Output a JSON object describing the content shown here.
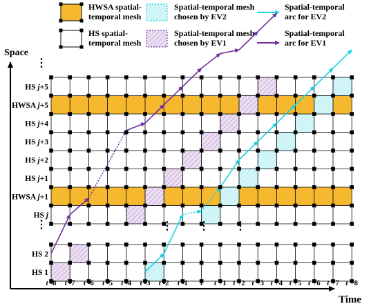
{
  "legend": {
    "hwsa_mesh": "HWSA spatial-\ntemporal mesh",
    "hs_mesh": "HS spatial-\ntemporal mesh",
    "ev2_mesh": "Spatial-temporal mesh\nchosen by EV2",
    "ev1_mesh": "Spatial-temporal mesh\nchosen by EV1",
    "ev2_arc": "Spatial-temporal\narc for EV2",
    "ev1_arc": "Spatial-temporal\narc for EV1"
  },
  "axes": {
    "y_label": "Space",
    "x_label": "Time"
  },
  "rows": [
    {
      "pre": "HS ",
      "var": "j",
      "post": "+5",
      "type": "HS"
    },
    {
      "pre": "HWSA ",
      "var": "j",
      "post": "+5",
      "type": "HWSA"
    },
    {
      "pre": "HS ",
      "var": "j",
      "post": "+4",
      "type": "HS"
    },
    {
      "pre": "HS ",
      "var": "j",
      "post": "+3",
      "type": "HS"
    },
    {
      "pre": "HS ",
      "var": "j",
      "post": "+2",
      "type": "HS"
    },
    {
      "pre": "HS ",
      "var": "j",
      "post": "+1",
      "type": "HS"
    },
    {
      "pre": "HWSA ",
      "var": "j",
      "post": "+1",
      "type": "HWSA"
    },
    {
      "pre": "HS ",
      "var": "j",
      "post": "",
      "type": "HS"
    }
  ],
  "bottom_rows": [
    {
      "pre": "HS 2",
      "var": "",
      "post": "",
      "type": "HS"
    },
    {
      "pre": "HS 1",
      "var": "",
      "post": "",
      "type": "HS"
    }
  ],
  "time_ticks": [
    {
      "var": "t",
      "post": " -8"
    },
    {
      "var": "t",
      "post": " -7"
    },
    {
      "var": "t",
      "post": " -6"
    },
    {
      "var": "t",
      "post": " -5"
    },
    {
      "var": "t",
      "post": " -4"
    },
    {
      "var": "t",
      "post": " -3"
    },
    {
      "var": "t",
      "post": " -2"
    },
    {
      "var": "t",
      "post": " -1"
    },
    {
      "var": "t",
      "post": ""
    },
    {
      "var": "t",
      "post": " +1"
    },
    {
      "var": "t",
      "post": " +2"
    },
    {
      "var": "t",
      "post": " +3"
    },
    {
      "var": "t",
      "post": " +4"
    },
    {
      "var": "t",
      "post": " +5"
    },
    {
      "var": "t",
      "post": " +6"
    },
    {
      "var": "t",
      "post": " +7"
    },
    {
      "var": "t",
      "post": " +8"
    }
  ],
  "ellipsis": "⋮",
  "colors": {
    "hwsa_fill": "#f5b82e",
    "ev1": "#7030a0",
    "ev1_fill": "#e6d4ee",
    "ev2": "#19d3e0",
    "ev2_fill": "#cdf4f6",
    "grid": "#000000",
    "node": "#000000"
  },
  "ev1_cells": [
    [
      0,
      9
    ],
    [
      1,
      8
    ],
    [
      4,
      7
    ],
    [
      5,
      6
    ],
    [
      6,
      5
    ],
    [
      7,
      4
    ],
    [
      8,
      3
    ],
    [
      9,
      2
    ],
    [
      10,
      1
    ],
    [
      11,
      0
    ]
  ],
  "ev2_cells": [
    [
      5,
      9
    ],
    [
      8,
      7
    ],
    [
      9,
      6
    ],
    [
      10,
      5
    ],
    [
      11,
      4
    ],
    [
      12,
      3
    ],
    [
      13,
      2
    ],
    [
      14,
      1
    ],
    [
      15,
      0
    ]
  ],
  "ev1_arc": [
    [
      0,
      8.5
    ],
    [
      1,
      7.5
    ],
    [
      2,
      6.6
    ],
    [
      4,
      2.9
    ],
    [
      5,
      2.5
    ],
    [
      6,
      1.5
    ],
    [
      7,
      0.5
    ],
    [
      8,
      -0.5
    ],
    [
      9,
      -1.3
    ],
    [
      10,
      -1.5
    ],
    [
      11,
      -2.5
    ],
    [
      12,
      -3.5
    ]
  ],
  "ev2_arc": [
    [
      5,
      9.5
    ],
    [
      6,
      8.5
    ],
    [
      7,
      7.5
    ],
    [
      8,
      7.3
    ],
    [
      9,
      6
    ],
    [
      10,
      4.5
    ],
    [
      11,
      3.5
    ],
    [
      12,
      2.5
    ],
    [
      13,
      1.5
    ],
    [
      14,
      0.5
    ],
    [
      15,
      -0.5
    ],
    [
      16,
      -1.5
    ]
  ]
}
